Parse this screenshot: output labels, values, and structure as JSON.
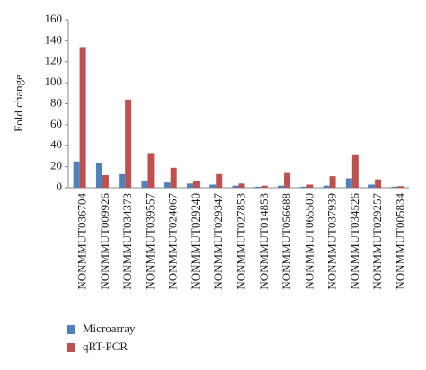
{
  "chart_data": {
    "type": "bar",
    "y_label": "Fold change",
    "categories": [
      "NONMMUT036704",
      "NONMMUT009926",
      "NONMMUT034373",
      "NONMMUT039557",
      "NONMMUT024067",
      "NONMMUT029240",
      "NONMMUT029347",
      "NONMMUT027853",
      "NONMMUT014853",
      "NONMMUT056688",
      "NONMMUT065500",
      "NONMMUT037939",
      "NONMMUT034526",
      "NONMMUT029257",
      "NONMMUT005834"
    ],
    "series": [
      {
        "name": "Microarray",
        "color": "#4f81bd",
        "values": [
          25,
          24,
          13,
          6,
          5,
          4,
          3,
          2,
          1,
          2,
          1,
          2,
          9,
          3,
          1
        ]
      },
      {
        "name": "qRT-PCR",
        "color": "#c0504d",
        "values": [
          134,
          12,
          84,
          33,
          19,
          6,
          13,
          4,
          2,
          14,
          3,
          11,
          31,
          8,
          1.5
        ]
      }
    ],
    "ylim": [
      0,
      160
    ],
    "yticks": [
      0,
      20,
      40,
      60,
      80,
      100,
      120,
      140,
      160
    ],
    "grid": false,
    "legend": "bottom-left"
  }
}
